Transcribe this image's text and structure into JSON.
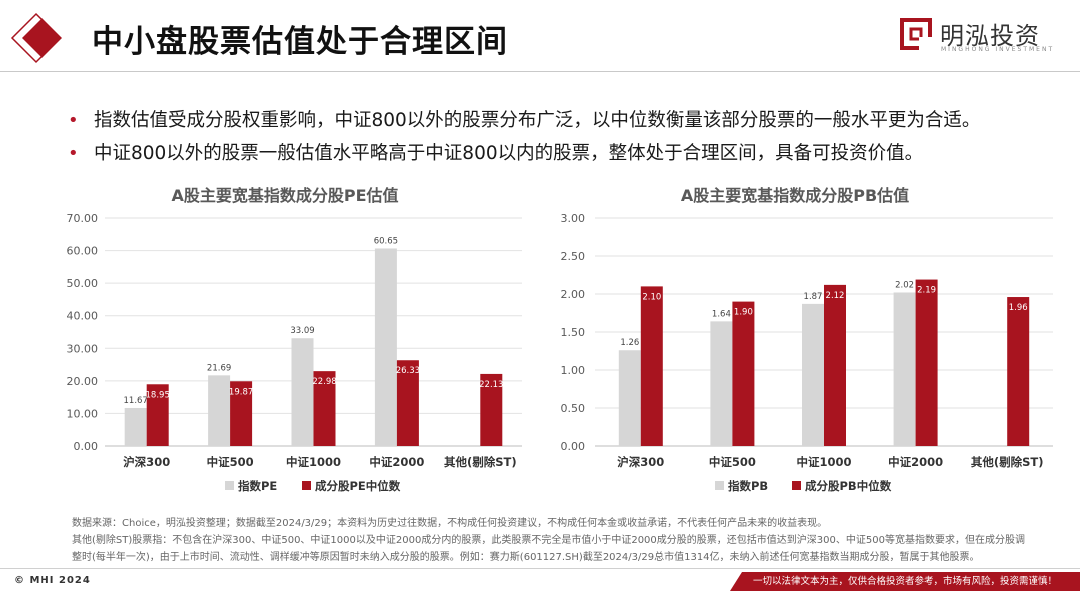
{
  "header": {
    "title": "中小盘股票估值处于合理区间",
    "brand_name": "明泓投资",
    "brand_sub": "MINGHONG INVESTMENT"
  },
  "bullets": [
    "指数估值受成分股权重影响，中证800以外的股票分布广泛，以中位数衡量该部分股票的一般水平更为合适。",
    "中证800以外的股票一般估值水平略高于中证800以内的股票，整体处于合理区间，具备可投资价值。"
  ],
  "colors": {
    "accent": "#a8141f",
    "bar_dark": "#a8141f",
    "bar_light": "#d6d6d6"
  },
  "chart_data": [
    {
      "type": "bar",
      "title": "A股主要宽基指数成分股PE估值",
      "categories": [
        "沪深300",
        "中证500",
        "中证1000",
        "中证2000",
        "其他(剔除ST)"
      ],
      "series": [
        {
          "name": "指数PE",
          "values": [
            11.67,
            21.69,
            33.09,
            60.65,
            null
          ],
          "color": "#d6d6d6"
        },
        {
          "name": "成分股PE中位数",
          "values": [
            18.95,
            19.87,
            22.98,
            26.33,
            22.13
          ],
          "color": "#a8141f"
        }
      ],
      "yticks": [
        "0.00",
        "10.00",
        "20.00",
        "30.00",
        "40.00",
        "50.00",
        "60.00",
        "70.00"
      ],
      "ylim": [
        0,
        70
      ],
      "decimals": 2,
      "legend": "bottom",
      "grid": true
    },
    {
      "type": "bar",
      "title": "A股主要宽基指数成分股PB估值",
      "categories": [
        "沪深300",
        "中证500",
        "中证1000",
        "中证2000",
        "其他(剔除ST)"
      ],
      "series": [
        {
          "name": "指数PB",
          "values": [
            1.26,
            1.64,
            1.87,
            2.02,
            null
          ],
          "color": "#d6d6d6"
        },
        {
          "name": "成分股PB中位数",
          "values": [
            2.1,
            1.9,
            2.12,
            2.19,
            1.96
          ],
          "color": "#a8141f"
        }
      ],
      "yticks": [
        "0.00",
        "0.50",
        "1.00",
        "1.50",
        "2.00",
        "2.50",
        "3.00"
      ],
      "ylim": [
        0,
        3
      ],
      "decimals": 2,
      "legend": "bottom",
      "grid": true
    }
  ],
  "notes": [
    "数据来源：Choice，明泓投资整理；数据截至2024/3/29；本资料为历史过往数据，不构成任何投资建议，不构成任何本金或收益承诺，不代表任何产品未来的收益表现。",
    "其他(剔除ST)股票指：不包含在沪深300、中证500、中证1000以及中证2000成分内的股票，此类股票不完全是市值小于中证2000成分股的股票，还包括市值达到沪深300、中证500等宽基指数要求，但在成分股调整时(每半年一次)，由于上市时间、流动性、调样缓冲等原因暂时未纳入成分股的股票。例如：赛力斯(601127.SH)截至2024/3/29总市值1314亿，未纳入前述任何宽基指数当期成分股，暂属于其他股票。"
  ],
  "footer": {
    "copyright": "© MHI 2024",
    "disclaimer": "一切以法律文本为主，仅供合格投资者参考，市场有风险，投资需谨慎！"
  }
}
